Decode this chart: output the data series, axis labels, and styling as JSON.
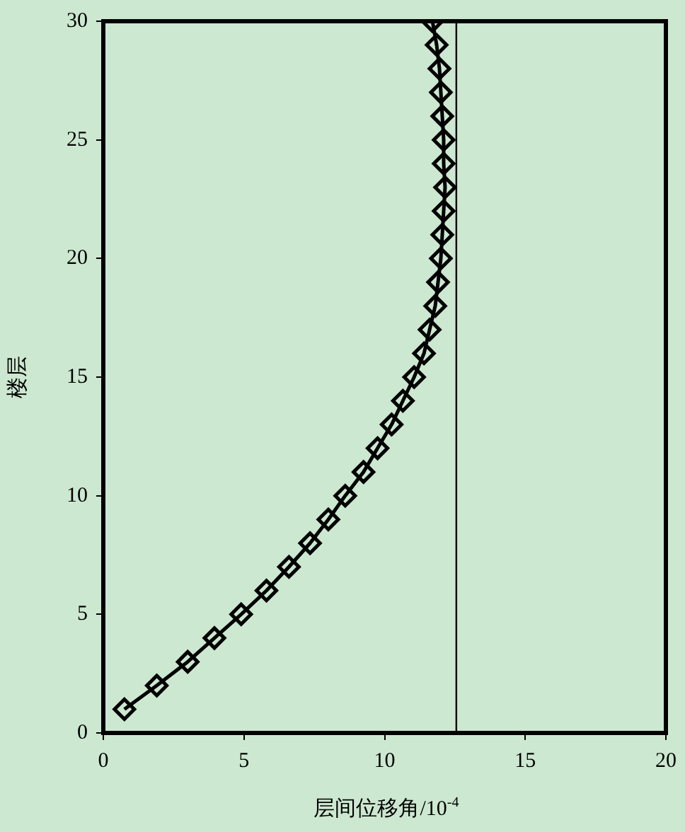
{
  "chart_data": {
    "type": "line",
    "xlabel": "层间位移角/10$^{-4}$",
    "ylabel": "楼层",
    "x": [
      0.75,
      1.9,
      3.0,
      3.95,
      4.9,
      5.8,
      6.6,
      7.35,
      8.0,
      8.6,
      9.25,
      9.75,
      10.25,
      10.65,
      11.05,
      11.4,
      11.6,
      11.8,
      11.9,
      12.0,
      12.05,
      12.1,
      12.15,
      12.1,
      12.1,
      12.05,
      12.0,
      11.95,
      11.85,
      11.7
    ],
    "series": [
      {
        "color": "#000000",
        "values": [
          1,
          2,
          3,
          4,
          5,
          6,
          7,
          8,
          9,
          10,
          11,
          12,
          13,
          14,
          15,
          16,
          17,
          18,
          19,
          20,
          21,
          22,
          23,
          24,
          25,
          26,
          27,
          28,
          29,
          30
        ]
      }
    ],
    "xlim": [
      0,
      20
    ],
    "xticks": [
      0,
      5,
      10,
      15,
      20
    ],
    "ylim": [
      0,
      30
    ],
    "yticks": [
      0,
      5,
      10,
      15,
      20,
      25,
      30
    ],
    "ref_lines": [
      {
        "axis": "x",
        "value": 12.55,
        "color": "#000000"
      }
    ],
    "grid": false,
    "legend": false,
    "marker": "diamond",
    "line_style": "solid"
  }
}
